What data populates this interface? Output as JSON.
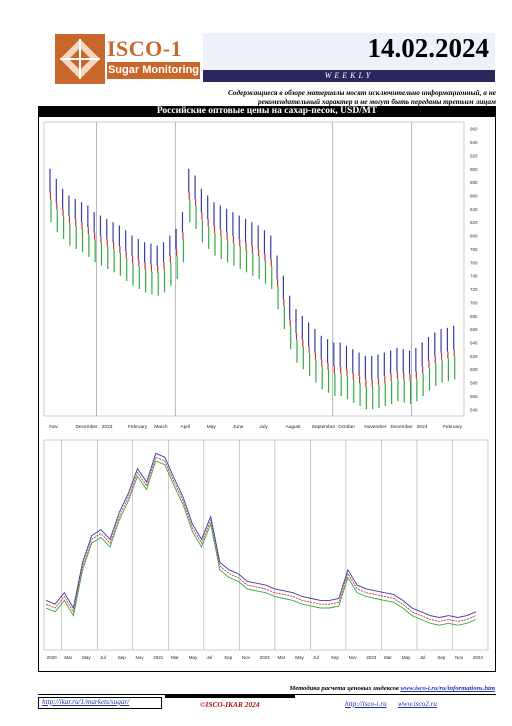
{
  "header": {
    "logo_name": "ISCO-1",
    "logo_tagline": "Sugar Monitoring",
    "date": "14.02.2024",
    "frequency": "WEEKLY",
    "disclaimer": "Содержащиеся в обзоре материалы носят исключительно информационный, а не рекомендательный характер и не могут быть переданы третьим лицам"
  },
  "colors": {
    "logo_orange": "#c9672a",
    "navy": "#28285f",
    "date_panel": "#eef0fa",
    "series_blue": "#3a3aa8",
    "series_red": "#cc3333",
    "series_green": "#33aa44",
    "gridline": "#888888"
  },
  "main": {
    "title": "Российские оптовые цены на сахар-песок, USD/MT"
  },
  "chart_data": [
    {
      "type": "candlestick-range",
      "title": "Российские оптовые цены на сахар-песок, USD/MT",
      "x_labels": [
        "Nov",
        "December",
        "2023",
        "February",
        "March",
        "April",
        "May",
        "June",
        "July",
        "August",
        "September",
        "October",
        "November",
        "December",
        "2024",
        "February"
      ],
      "vertical_markers_at_index": [
        2,
        5,
        11,
        14
      ],
      "y_ticks": [
        960,
        940,
        920,
        900,
        880,
        860,
        840,
        820,
        800,
        780,
        760,
        740,
        720,
        700,
        680,
        660,
        640,
        620,
        600,
        580,
        560,
        540
      ],
      "ylim": [
        530,
        970
      ],
      "series": [
        {
          "name": "high",
          "color": "#3a3aa8",
          "values": [
            900,
            885,
            870,
            860,
            855,
            850,
            845,
            835,
            830,
            825,
            820,
            815,
            808,
            800,
            795,
            790,
            788,
            785,
            790,
            800,
            810,
            835,
            900,
            890,
            870,
            860,
            850,
            845,
            840,
            835,
            830,
            825,
            820,
            815,
            808,
            800,
            770,
            740,
            710,
            690,
            680,
            670,
            660,
            650,
            645,
            640,
            640,
            635,
            630,
            625,
            620,
            620,
            622,
            625,
            628,
            632,
            630,
            628,
            632,
            640,
            648,
            655,
            660,
            662,
            665
          ]
        },
        {
          "name": "mid",
          "color": "#cc3333",
          "values": [
            860,
            845,
            835,
            825,
            820,
            815,
            808,
            800,
            795,
            790,
            785,
            780,
            772,
            765,
            760,
            755,
            752,
            750,
            755,
            765,
            775,
            800,
            860,
            850,
            830,
            820,
            810,
            805,
            800,
            795,
            790,
            785,
            780,
            775,
            768,
            760,
            730,
            700,
            670,
            650,
            640,
            630,
            620,
            610,
            605,
            600,
            600,
            595,
            590,
            585,
            580,
            580,
            582,
            585,
            588,
            592,
            590,
            588,
            592,
            600,
            608,
            615,
            620,
            622,
            625
          ]
        },
        {
          "name": "low",
          "color": "#33aa44",
          "values": [
            820,
            805,
            795,
            785,
            780,
            775,
            768,
            760,
            755,
            750,
            745,
            740,
            732,
            725,
            720,
            715,
            712,
            710,
            715,
            725,
            735,
            760,
            820,
            810,
            790,
            780,
            770,
            765,
            760,
            755,
            750,
            745,
            740,
            735,
            728,
            720,
            690,
            660,
            630,
            610,
            600,
            590,
            580,
            570,
            565,
            560,
            560,
            555,
            550,
            545,
            540,
            540,
            542,
            545,
            548,
            552,
            550,
            548,
            552,
            560,
            568,
            575,
            580,
            582,
            585
          ]
        }
      ]
    },
    {
      "type": "line",
      "title": "",
      "x_labels": [
        "2020",
        "Mar",
        "May",
        "Jul",
        "Sep",
        "Nov",
        "2021",
        "Mar",
        "May",
        "Jul",
        "Sep",
        "Nov",
        "2022",
        "Mar",
        "May",
        "Jul",
        "Sep",
        "Nov",
        "2023",
        "Mar",
        "May",
        "Jul",
        "Sep",
        "Nov",
        "2024"
      ],
      "vertical_markers_at_index": [
        1,
        3,
        5,
        7,
        9,
        11,
        13,
        15,
        17,
        19,
        21,
        23
      ],
      "ylim": [
        300,
        1400
      ],
      "series": [
        {
          "color": "#3a3aa8",
          "values": [
            560,
            540,
            600,
            520,
            760,
            900,
            930,
            880,
            1020,
            1120,
            1250,
            1180,
            1330,
            1310,
            1200,
            1100,
            960,
            880,
            1000,
            760,
            720,
            700,
            660,
            650,
            640,
            620,
            610,
            600,
            580,
            570,
            560,
            560,
            570,
            720,
            640,
            620,
            610,
            600,
            590,
            560,
            520,
            500,
            480,
            470,
            480,
            470,
            480,
            500
          ]
        },
        {
          "color": "#cc3333",
          "values": [
            540,
            520,
            580,
            500,
            740,
            880,
            910,
            860,
            1000,
            1100,
            1230,
            1160,
            1310,
            1290,
            1180,
            1080,
            940,
            860,
            980,
            740,
            700,
            680,
            640,
            630,
            620,
            600,
            590,
            580,
            560,
            550,
            540,
            540,
            550,
            700,
            620,
            600,
            590,
            580,
            570,
            540,
            500,
            480,
            460,
            450,
            460,
            450,
            460,
            480
          ]
        },
        {
          "color": "#33aa44",
          "values": [
            520,
            500,
            560,
            480,
            720,
            860,
            890,
            840,
            980,
            1080,
            1210,
            1140,
            1290,
            1270,
            1160,
            1060,
            920,
            840,
            960,
            720,
            680,
            660,
            620,
            610,
            600,
            580,
            570,
            560,
            540,
            530,
            520,
            520,
            530,
            680,
            600,
            580,
            570,
            560,
            550,
            520,
            480,
            460,
            440,
            430,
            440,
            430,
            440,
            460
          ]
        }
      ]
    }
  ],
  "footer": {
    "method_text": "Методика расчета ценовых индексов",
    "method_link": "www.isco-i.ru/ru/informations.htm",
    "url1": "http://ikar.ru/1/markets/sugar/",
    "copyright": "©ISCO-IKAR 2024",
    "url2": "http://isco-i.ru",
    "url3": "www.isco2.ru"
  }
}
